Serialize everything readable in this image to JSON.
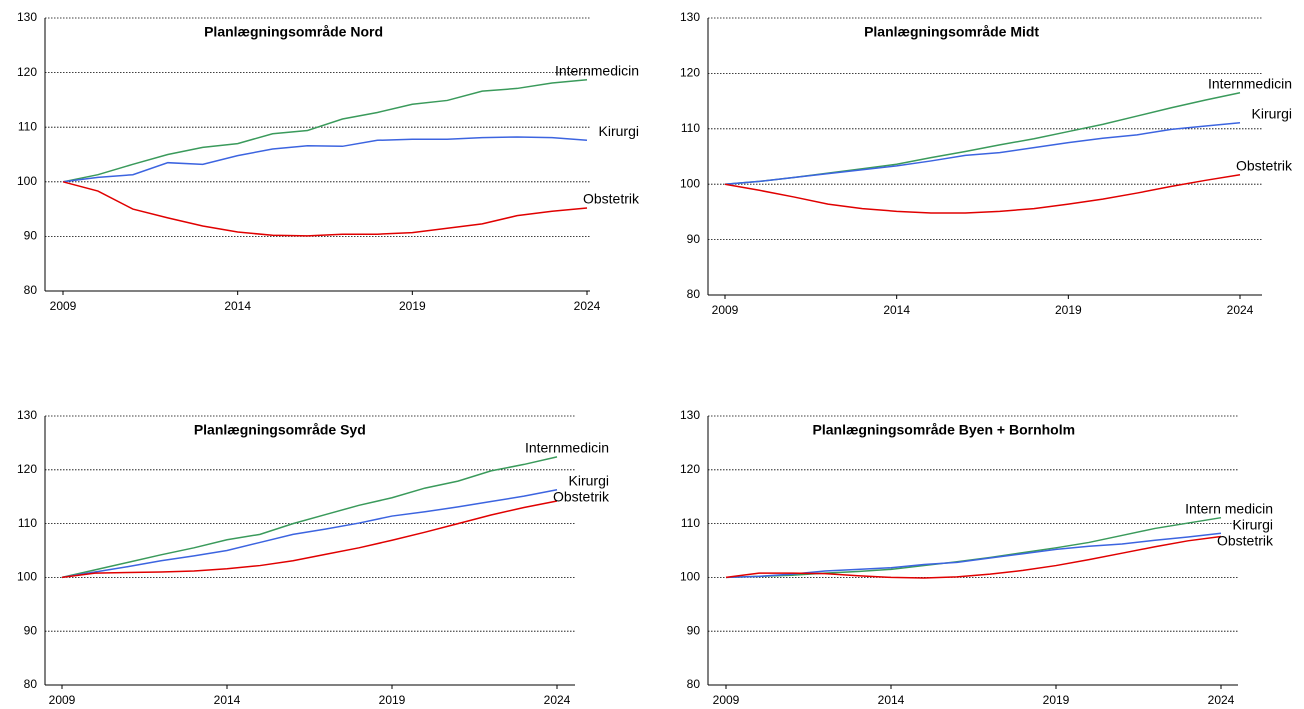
{
  "chart_data": [
    {
      "type": "line",
      "title": "Planlægningsområde Nord",
      "x": [
        2009,
        2010,
        2011,
        2012,
        2013,
        2014,
        2015,
        2016,
        2017,
        2018,
        2019,
        2020,
        2021,
        2022,
        2023,
        2024
      ],
      "xlim": [
        2009,
        2024
      ],
      "xticks": [
        2009,
        2014,
        2019,
        2024
      ],
      "ylim": [
        80,
        130
      ],
      "yticks": [
        80,
        90,
        100,
        110,
        120,
        130
      ],
      "grid": true,
      "series": [
        {
          "name": "Internmedicin",
          "color": "#3a9a5b",
          "values": [
            100,
            101.3,
            103.2,
            105,
            106.3,
            107,
            108.8,
            109.4,
            111.5,
            112.7,
            114.2,
            114.9,
            116.6,
            117.1,
            118.1,
            118.7
          ]
        },
        {
          "name": "Kirurgi",
          "color": "#3c64e0",
          "values": [
            100,
            100.8,
            101.3,
            103.5,
            103.2,
            104.8,
            106,
            106.6,
            106.5,
            107.6,
            107.8,
            107.8,
            108.1,
            108.2,
            108.1,
            107.6
          ]
        },
        {
          "name": "Obstetrik",
          "color": "#e00000",
          "values": [
            100,
            98.3,
            95,
            93.4,
            91.9,
            90.8,
            90.2,
            90.1,
            90.4,
            90.4,
            90.7,
            91.5,
            92.3,
            93.8,
            94.6,
            95.2
          ]
        }
      ]
    },
    {
      "type": "line",
      "title": "Planlægningsområde Midt",
      "x": [
        2009,
        2010,
        2011,
        2012,
        2013,
        2014,
        2015,
        2016,
        2017,
        2018,
        2019,
        2020,
        2021,
        2022,
        2023,
        2024
      ],
      "xlim": [
        2009,
        2024
      ],
      "xticks": [
        2009,
        2014,
        2019,
        2024
      ],
      "ylim": [
        80,
        130
      ],
      "yticks": [
        80,
        90,
        100,
        110,
        120,
        130
      ],
      "grid": true,
      "series": [
        {
          "name": "Internmedicin",
          "color": "#3a9a5b",
          "values": [
            100,
            100.5,
            101.2,
            102,
            102.8,
            103.6,
            104.8,
            105.9,
            107.1,
            108.2,
            109.5,
            110.8,
            112.3,
            113.8,
            115.2,
            116.5
          ]
        },
        {
          "name": "Kirurgi",
          "color": "#3c64e0",
          "values": [
            100,
            100.5,
            101.2,
            101.9,
            102.6,
            103.3,
            104.2,
            105.2,
            105.7,
            106.6,
            107.5,
            108.3,
            108.9,
            109.9,
            110.5,
            111.1
          ]
        },
        {
          "name": "Obstetrik",
          "color": "#e00000",
          "values": [
            100,
            98.9,
            97.7,
            96.4,
            95.6,
            95.1,
            94.8,
            94.8,
            95.1,
            95.6,
            96.4,
            97.3,
            98.4,
            99.6,
            100.7,
            101.7
          ]
        }
      ]
    },
    {
      "type": "line",
      "title": "Planlægningsområde Syd",
      "x": [
        2009,
        2010,
        2011,
        2012,
        2013,
        2014,
        2015,
        2016,
        2017,
        2018,
        2019,
        2020,
        2021,
        2022,
        2023,
        2024
      ],
      "xlim": [
        2009,
        2024
      ],
      "xticks": [
        2009,
        2014,
        2019,
        2024
      ],
      "ylim": [
        80,
        130
      ],
      "yticks": [
        80,
        90,
        100,
        110,
        120,
        130
      ],
      "grid": true,
      "series": [
        {
          "name": "Internmedicin",
          "color": "#3a9a5b",
          "values": [
            100,
            101.4,
            102.8,
            104.2,
            105.5,
            107,
            108,
            110,
            111.7,
            113.4,
            114.8,
            116.6,
            117.9,
            119.8,
            121,
            122.4
          ]
        },
        {
          "name": "Kirurgi",
          "color": "#3c64e0",
          "values": [
            100,
            101,
            102,
            103.1,
            104,
            105,
            106.5,
            108,
            109,
            110.1,
            111.4,
            112.2,
            113.1,
            114.1,
            115.1,
            116.3
          ]
        },
        {
          "name": "Obstetrik",
          "color": "#e00000",
          "values": [
            100,
            100.8,
            100.9,
            101,
            101.2,
            101.6,
            102.2,
            103.1,
            104.3,
            105.5,
            106.9,
            108.4,
            110,
            111.6,
            113,
            114.2
          ]
        }
      ]
    },
    {
      "type": "line",
      "title": "Planlægningsområde Byen + Bornholm",
      "x": [
        2009,
        2010,
        2011,
        2012,
        2013,
        2014,
        2015,
        2016,
        2017,
        2018,
        2019,
        2020,
        2021,
        2022,
        2023,
        2024
      ],
      "xlim": [
        2009,
        2024
      ],
      "xticks": [
        2009,
        2014,
        2019,
        2024
      ],
      "ylim": [
        80,
        130
      ],
      "yticks": [
        80,
        90,
        100,
        110,
        120,
        130
      ],
      "grid": true,
      "series": [
        {
          "name": "Intern medicin",
          "color": "#3a9a5b",
          "values": [
            100,
            100.2,
            100.4,
            100.8,
            101.1,
            101.5,
            102.2,
            102.9,
            103.7,
            104.6,
            105.5,
            106.5,
            107.8,
            109.1,
            110.1,
            111.1
          ]
        },
        {
          "name": "Kirurgi",
          "color": "#3c64e0",
          "values": [
            100,
            100.2,
            100.6,
            101.2,
            101.5,
            101.8,
            102.4,
            102.8,
            103.6,
            104.4,
            105.2,
            105.8,
            106.2,
            106.9,
            107.5,
            108.2
          ]
        },
        {
          "name": "Obstetrik",
          "color": "#e00000",
          "values": [
            100,
            100.8,
            100.8,
            100.7,
            100.3,
            100,
            99.9,
            100.1,
            100.6,
            101.3,
            102.2,
            103.3,
            104.5,
            105.7,
            106.8,
            107.6
          ]
        }
      ]
    }
  ]
}
